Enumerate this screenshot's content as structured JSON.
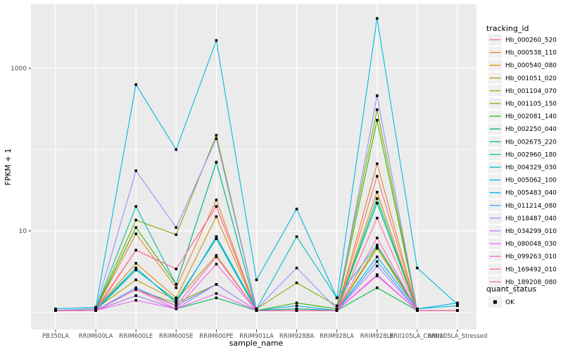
{
  "figure": {
    "background": "#ffffff",
    "panel_background": "#ebebeb",
    "gridline_color": "#ffffff",
    "tick_color": "#333333",
    "tick_label_color": "#4d4d4d",
    "axis_title_color": "#000000"
  },
  "chart_data": {
    "type": "line",
    "title": "",
    "xlabel": "sample_name",
    "ylabel": "FPKM + 1",
    "y_scale": "log10",
    "ylim": [
      0.65,
      6000
    ],
    "y_major_ticks": [
      {
        "value": 10,
        "label": "10"
      },
      {
        "value": 1000,
        "label": "1000"
      }
    ],
    "y_minor_ticks": [
      1,
      100
    ],
    "grid": true,
    "point_marker": {
      "shape": "square",
      "color": "#000000",
      "size": 3.6
    },
    "legend_position": "right",
    "legend_title": "tracking_id",
    "legend2": {
      "title": "quant_status",
      "items": [
        {
          "label": "OK",
          "marker": "square",
          "color": "#000000"
        }
      ]
    },
    "categories": [
      "PB350LA",
      "RRIM600LA",
      "RRIM600LE",
      "RRIM600SE",
      "RRIM600PE",
      "RRIM901LA",
      "RRIM928BA",
      "RRIM928LA",
      "RRIM928LE",
      "RRII105LA_Control",
      "RRII105LA_Stressed"
    ],
    "series": [
      {
        "name": "Hb_000260_520",
        "color": "#F8766D",
        "values": [
          1.05,
          1.1,
          5.8,
          3.4,
          20,
          1.05,
          1.1,
          1.05,
          47,
          1.05,
          1.05
        ]
      },
      {
        "name": "Hb_000538_110",
        "color": "#EA8331",
        "values": [
          1.05,
          1.1,
          9.2,
          2.0,
          24,
          1.05,
          1.1,
          1.05,
          67,
          1.05,
          1.05
        ]
      },
      {
        "name": "Hb_000540_080",
        "color": "#D89000",
        "values": [
          1.05,
          1.1,
          4.0,
          1.5,
          15,
          1.05,
          1.05,
          1.05,
          30,
          1.05,
          1.05
        ]
      },
      {
        "name": "Hb_001051_020",
        "color": "#C09B00",
        "values": [
          1.05,
          1.1,
          2.5,
          1.4,
          5.0,
          1.05,
          1.05,
          1.05,
          6.5,
          1.05,
          1.05
        ]
      },
      {
        "name": "Hb_001104_070",
        "color": "#A3A500",
        "values": [
          1.05,
          1.05,
          1.9,
          1.3,
          2.2,
          1.05,
          1.05,
          1.05,
          6.1,
          1.05,
          1.05
        ]
      },
      {
        "name": "Hb_001105_150",
        "color": "#7CAE00",
        "values": [
          1.05,
          1.1,
          13.6,
          9.0,
          150,
          1.1,
          2.3,
          1.2,
          310,
          1.05,
          1.05
        ]
      },
      {
        "name": "Hb_002081_140",
        "color": "#39B600",
        "values": [
          1.05,
          1.1,
          11,
          2.2,
          70,
          1.05,
          1.3,
          1.1,
          230,
          1.05,
          1.05
        ]
      },
      {
        "name": "Hb_002250_040",
        "color": "#00BB4E",
        "values": [
          1.05,
          1.05,
          1.6,
          1.1,
          1.5,
          1.05,
          1.05,
          1.05,
          2.0,
          1.05,
          1.05
        ]
      },
      {
        "name": "Hb_002675_220",
        "color": "#00BF7D",
        "values": [
          1.05,
          1.05,
          3.3,
          1.4,
          8.0,
          1.05,
          1.05,
          1.05,
          22,
          1.05,
          1.05
        ]
      },
      {
        "name": "Hb_002960_180",
        "color": "#00C1A3",
        "values": [
          1.05,
          1.1,
          20,
          2.2,
          70,
          1.05,
          1.1,
          1.05,
          25,
          1.05,
          1.05
        ]
      },
      {
        "name": "Hb_004329_030",
        "color": "#00BFC4",
        "values": [
          1.05,
          1.1,
          3.5,
          1.3,
          8.5,
          1.1,
          8.5,
          1.5,
          6.7,
          1.1,
          1.2
        ]
      },
      {
        "name": "Hb_005062_100",
        "color": "#00BAE0",
        "values": [
          1.1,
          1.15,
          630,
          100,
          2200,
          2.5,
          18.6,
          1.5,
          4100,
          3.5,
          1.25
        ]
      },
      {
        "name": "Hb_005483_040",
        "color": "#00B0F6",
        "values": [
          1.05,
          1.05,
          3.5,
          1.3,
          8.5,
          1.05,
          1.2,
          1.05,
          4.8,
          1.1,
          1.3
        ]
      },
      {
        "name": "Hb_011214_080",
        "color": "#35A2FF",
        "values": [
          1.05,
          1.05,
          2.0,
          1.2,
          2.2,
          1.05,
          1.05,
          1.05,
          4.2,
          1.05,
          1.05
        ]
      },
      {
        "name": "Hb_018487_040",
        "color": "#9590FF",
        "values": [
          1.05,
          1.1,
          55,
          11,
          136,
          1.1,
          3.5,
          1.1,
          460,
          1.05,
          1.05
        ]
      },
      {
        "name": "Hb_034299_010",
        "color": "#C77CFF",
        "values": [
          1.05,
          1.05,
          1.6,
          1.1,
          2.2,
          1.05,
          1.05,
          1.05,
          3.7,
          1.05,
          1.05
        ]
      },
      {
        "name": "Hb_080048_030",
        "color": "#E76BF3",
        "values": [
          1.05,
          1.05,
          1.4,
          1.1,
          1.7,
          1.05,
          1.05,
          1.05,
          2.9,
          1.05,
          1.05
        ]
      },
      {
        "name": "Hb_099263_010",
        "color": "#FA62DB",
        "values": [
          1.05,
          1.05,
          1.9,
          1.1,
          3.9,
          1.05,
          1.05,
          1.05,
          2.8,
          1.05,
          1.05
        ]
      },
      {
        "name": "Hb_169492_010",
        "color": "#FF62BC",
        "values": [
          1.05,
          1.05,
          1.9,
          1.2,
          4.8,
          1.05,
          1.05,
          1.05,
          8.2,
          1.05,
          1.05
        ]
      },
      {
        "name": "Hb_189208_080",
        "color": "#FF6A98",
        "values": [
          1.05,
          1.05,
          5.8,
          3.4,
          20,
          1.05,
          1.05,
          1.05,
          14.4,
          1.05,
          1.05
        ]
      }
    ]
  }
}
